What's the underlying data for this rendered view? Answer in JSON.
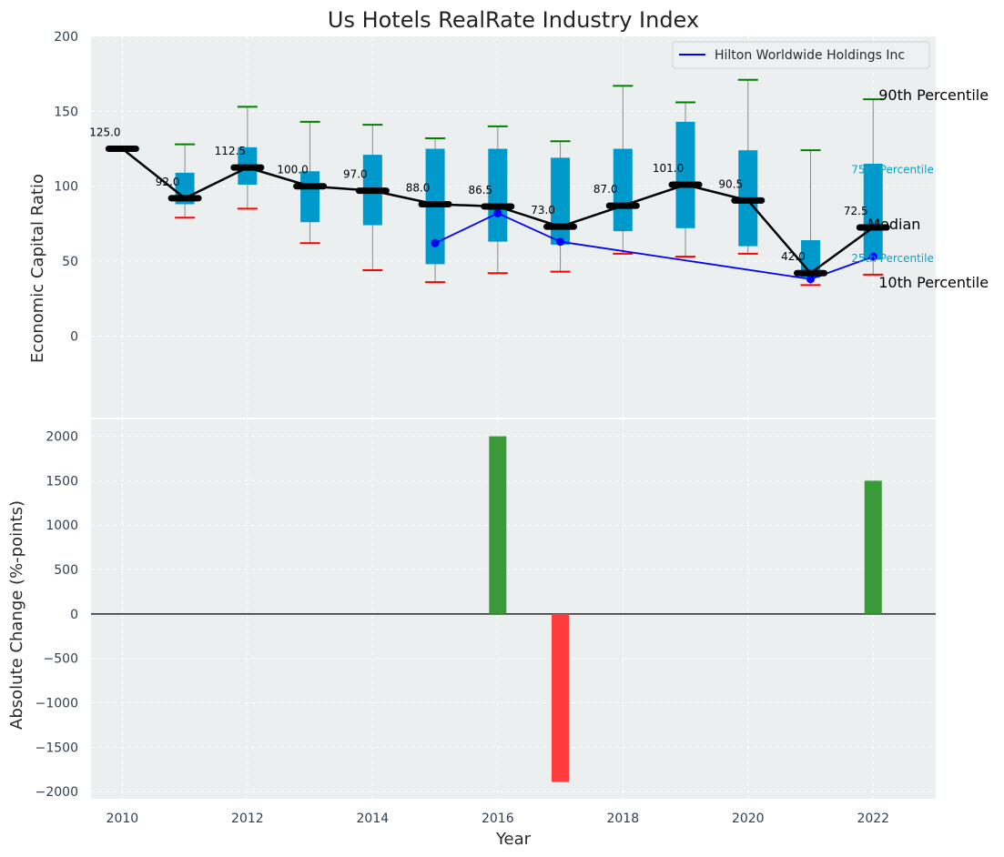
{
  "colors": {
    "panel_bg": "#ecefef",
    "grid": "#ffffff",
    "box_fill": "#0099cc",
    "whisker": "#888888",
    "cap_top": "#008000",
    "cap_bottom": "#ff0000",
    "median_line": "#000000",
    "company_line": "#0000ff",
    "positive_bar": "#3a9a3a",
    "negative_bar": "#ff3b3b",
    "annotation_small": "#0aa1c8"
  },
  "chart_data": [
    {
      "type": "box",
      "title": "Us Hotels RealRate Industry Index",
      "xlabel": "",
      "ylabel": "Economic Capital Ratio",
      "xlim": [
        2009.5,
        2023.0
      ],
      "ylim": [
        -55,
        200
      ],
      "yticks": [
        0,
        50,
        100,
        150,
        200
      ],
      "grid": true,
      "legend": {
        "position": "top-right",
        "entries": [
          "Hilton Worldwide Holdings Inc"
        ]
      },
      "years": [
        2010,
        2011,
        2012,
        2013,
        2014,
        2015,
        2016,
        2017,
        2018,
        2019,
        2020,
        2021,
        2022
      ],
      "p10": [
        null,
        79,
        85,
        62,
        44,
        36,
        42,
        43,
        55,
        53,
        55,
        34,
        41
      ],
      "p25": [
        null,
        88,
        101,
        76,
        74,
        48,
        63,
        61,
        70,
        72,
        60,
        39,
        51
      ],
      "median": [
        125.0,
        92.0,
        112.5,
        100.0,
        97.0,
        88.0,
        86.5,
        73.0,
        87.0,
        101.0,
        90.5,
        42.0,
        72.5
      ],
      "p75": [
        null,
        109,
        126,
        110,
        121,
        125,
        125,
        119,
        125,
        143,
        124,
        64,
        115
      ],
      "p90": [
        null,
        128,
        153,
        143,
        141,
        132,
        140,
        130,
        167,
        156,
        171,
        124,
        158
      ],
      "median_labels": [
        "125.0",
        "92.0",
        "112.5",
        "100.0",
        "97.0",
        "88.0",
        "86.5",
        "73.0",
        "87.0",
        "101.0",
        "90.5",
        "42.0",
        "72.5"
      ],
      "company": {
        "name": "Hilton Worldwide Holdings Inc",
        "years": [
          2015,
          2016,
          2017,
          2021,
          2022
        ],
        "values": [
          62,
          82,
          63,
          38,
          53
        ]
      },
      "annotations": {
        "p90": "90th Percentile",
        "p75": "75th Percentile",
        "median": "Median",
        "p25": "25th Percentile",
        "p10": "10th Percentile"
      }
    },
    {
      "type": "bar",
      "title": "",
      "xlabel": "Year",
      "ylabel": "Absolute Change (%-points)",
      "xlim": [
        2009.5,
        2023.0
      ],
      "ylim": [
        -2080,
        2200
      ],
      "yticks": [
        -2000,
        -1500,
        -1000,
        -500,
        0,
        500,
        1000,
        1500,
        2000
      ],
      "xticks": [
        2010,
        2012,
        2014,
        2016,
        2018,
        2020,
        2022
      ],
      "grid": true,
      "years": [
        2016,
        2017,
        2022
      ],
      "values": [
        2000,
        -1890,
        1500
      ]
    }
  ]
}
